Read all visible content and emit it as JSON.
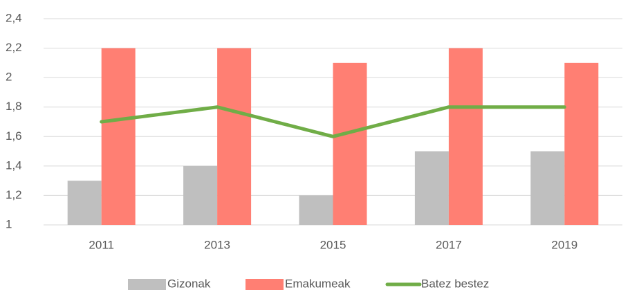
{
  "chart_data": {
    "type": "bar",
    "categories": [
      "2011",
      "2013",
      "2015",
      "2017",
      "2019"
    ],
    "series": [
      {
        "name": "Gizonak",
        "type": "bar",
        "color": "#bfbfbf",
        "values": [
          1.3,
          1.4,
          1.2,
          1.5,
          1.5
        ]
      },
      {
        "name": "Emakumeak",
        "type": "bar",
        "color": "#ff7f73",
        "values": [
          2.2,
          2.2,
          2.1,
          2.2,
          2.1
        ]
      },
      {
        "name": "Batez bestez",
        "type": "line",
        "color": "#70ad47",
        "values": [
          1.7,
          1.8,
          1.6,
          1.8,
          1.8
        ]
      }
    ],
    "ylim": [
      1,
      2.4
    ],
    "yticks": [
      1,
      {
        "value": 1.2,
        "label": "1,2"
      },
      {
        "value": 1.4,
        "label": "1,4"
      },
      {
        "value": 1.6,
        "label": "1,6"
      },
      {
        "value": 1.8,
        "label": "1,8"
      },
      2,
      {
        "value": 2.2,
        "label": "2,2"
      },
      {
        "value": 2.4,
        "label": "2,4"
      }
    ],
    "grid": true,
    "legend": "bottom"
  }
}
